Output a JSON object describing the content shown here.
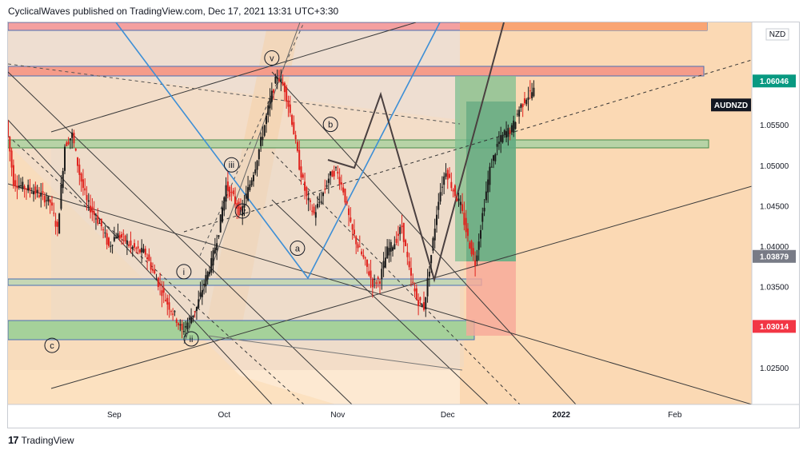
{
  "header": {
    "published": "CyclicalWaves published on TradingView.com, Dec 17, 2021 13:31 UTC+3:30"
  },
  "footer": {
    "brand": "TradingView",
    "logo_mark": "17"
  },
  "chart_data": {
    "type": "candlestick",
    "symbol": "AUDNZD",
    "currency": "NZD",
    "ylim": [
      1.0205,
      1.0677
    ],
    "y_ticks": [
      1.025,
      1.035,
      1.04,
      1.045,
      1.05,
      1.055
    ],
    "y_tick_labels": [
      "1.02500",
      "1.03500",
      "1.04000",
      "1.04500",
      "1.05000",
      "1.05500"
    ],
    "x_labels": [
      {
        "label": "Sep",
        "day": 22
      },
      {
        "label": "Oct",
        "day": 52
      },
      {
        "label": "Nov",
        "day": 83
      },
      {
        "label": "Dec",
        "day": 113
      },
      {
        "label": "2022",
        "day": 144
      },
      {
        "label": "Feb",
        "day": 175
      }
    ],
    "x_range": [
      -7,
      196
    ],
    "price_badges": [
      {
        "label": "1.06046",
        "value": 1.06046,
        "color": "#089981"
      },
      {
        "label": "1.03879",
        "value": 1.03879,
        "color": "#787b86"
      },
      {
        "label": "1.03014",
        "value": 1.03014,
        "color": "#f23645"
      }
    ],
    "symbol_badge": {
      "label": "AUDNZD",
      "value": 1.0575
    },
    "price_path": [
      [
        -7,
        1.0555
      ],
      [
        -5,
        1.048
      ],
      [
        -3,
        1.0475
      ],
      [
        0,
        1.047
      ],
      [
        3,
        1.0462
      ],
      [
        5,
        1.0455
      ],
      [
        7,
        1.042
      ],
      [
        9,
        1.0525
      ],
      [
        11,
        1.0538
      ],
      [
        13,
        1.049
      ],
      [
        15,
        1.0455
      ],
      [
        17,
        1.044
      ],
      [
        19,
        1.0425
      ],
      [
        21,
        1.04
      ],
      [
        23,
        1.0415
      ],
      [
        25,
        1.041
      ],
      [
        27,
        1.04
      ],
      [
        29,
        1.0395
      ],
      [
        31,
        1.0392
      ],
      [
        33,
        1.037
      ],
      [
        35,
        1.035
      ],
      [
        37,
        1.033
      ],
      [
        39,
        1.0315
      ],
      [
        41,
        1.0295
      ],
      [
        43,
        1.031
      ],
      [
        45,
        1.0325
      ],
      [
        47,
        1.0355
      ],
      [
        49,
        1.038
      ],
      [
        51,
        1.042
      ],
      [
        53,
        1.0475
      ],
      [
        55,
        1.046
      ],
      [
        57,
        1.044
      ],
      [
        59,
        1.047
      ],
      [
        61,
        1.05
      ],
      [
        63,
        1.054
      ],
      [
        65,
        1.058
      ],
      [
        67,
        1.0612
      ],
      [
        69,
        1.0595
      ],
      [
        71,
        1.0555
      ],
      [
        73,
        1.05
      ],
      [
        75,
        1.046
      ],
      [
        77,
        1.044
      ],
      [
        79,
        1.046
      ],
      [
        81,
        1.0485
      ],
      [
        83,
        1.0495
      ],
      [
        85,
        1.047
      ],
      [
        87,
        1.0425
      ],
      [
        89,
        1.04
      ],
      [
        91,
        1.038
      ],
      [
        93,
        1.0355
      ],
      [
        95,
        1.036
      ],
      [
        97,
        1.0395
      ],
      [
        99,
        1.0405
      ],
      [
        101,
        1.0425
      ],
      [
        103,
        1.037
      ],
      [
        105,
        1.0335
      ],
      [
        107,
        1.0325
      ],
      [
        109,
        1.039
      ],
      [
        111,
        1.046
      ],
      [
        113,
        1.0495
      ],
      [
        115,
        1.047
      ],
      [
        117,
        1.045
      ],
      [
        119,
        1.041
      ],
      [
        121,
        1.038
      ],
      [
        123,
        1.044
      ],
      [
        125,
        1.0495
      ],
      [
        127,
        1.0525
      ],
      [
        129,
        1.054
      ],
      [
        131,
        1.0545
      ],
      [
        133,
        1.057
      ],
      [
        135,
        1.0585
      ],
      [
        137,
        1.0593
      ]
    ],
    "wave_labels": [
      {
        "label": "v",
        "day": 65,
        "value": 1.0633
      },
      {
        "label": "b",
        "day": 81,
        "value": 1.0551
      },
      {
        "label": "iii",
        "day": 54,
        "value": 1.0501
      },
      {
        "label": "iv",
        "day": 57,
        "value": 1.0444
      },
      {
        "label": "a",
        "day": 72,
        "value": 1.0398
      },
      {
        "label": "i",
        "day": 41,
        "value": 1.0369
      },
      {
        "label": "ii",
        "day": 43,
        "value": 1.0286
      },
      {
        "label": "c",
        "day": 5,
        "value": 1.0278
      }
    ]
  }
}
